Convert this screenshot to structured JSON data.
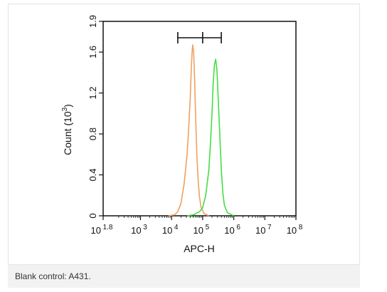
{
  "caption": "Blank control: A431.",
  "chart_data": {
    "type": "line",
    "title": "",
    "xlabel": "APC-H",
    "ylabel": "Count (10^3)",
    "ylabel_base": "Count (10",
    "ylabel_exp": "3",
    "ylabel_close": ")",
    "x_scale": "log10",
    "xlim": [
      1.8,
      8
    ],
    "ylim": [
      0,
      1.9
    ],
    "x_ticks": [
      {
        "value": 1.8,
        "base": "10",
        "exp": "1.8"
      },
      {
        "value": 3,
        "base": "10",
        "exp": "3"
      },
      {
        "value": 4,
        "base": "10",
        "exp": "4"
      },
      {
        "value": 5,
        "base": "10",
        "exp": "5"
      },
      {
        "value": 6,
        "base": "10",
        "exp": "6"
      },
      {
        "value": 7,
        "base": "10",
        "exp": "7"
      },
      {
        "value": 8,
        "base": "10",
        "exp": "8"
      }
    ],
    "y_ticks": [
      {
        "value": 0,
        "label": "0"
      },
      {
        "value": 0.4,
        "label": "0.4"
      },
      {
        "value": 0.8,
        "label": "0.8"
      },
      {
        "value": 1.2,
        "label": "1.2"
      },
      {
        "value": 1.6,
        "label": "1.6"
      },
      {
        "value": 1.9,
        "label": "1.9"
      }
    ],
    "gate_marker": {
      "x_start": 4.2,
      "x_mid": 5.0,
      "x_end": 5.6,
      "y": 1.74
    },
    "series": [
      {
        "color": "#f0a060",
        "points": [
          [
            3.9,
            0
          ],
          [
            4.1,
            0.01
          ],
          [
            4.2,
            0.04
          ],
          [
            4.3,
            0.12
          ],
          [
            4.4,
            0.3
          ],
          [
            4.5,
            0.6
          ],
          [
            4.55,
            0.85
          ],
          [
            4.6,
            1.15
          ],
          [
            4.63,
            1.4
          ],
          [
            4.66,
            1.6
          ],
          [
            4.68,
            1.67
          ],
          [
            4.71,
            1.6
          ],
          [
            4.74,
            1.35
          ],
          [
            4.78,
            0.9
          ],
          [
            4.82,
            0.55
          ],
          [
            4.86,
            0.32
          ],
          [
            4.9,
            0.18
          ],
          [
            4.95,
            0.08
          ],
          [
            5.05,
            0.02
          ],
          [
            5.2,
            0
          ]
        ]
      },
      {
        "color": "#44dd44",
        "points": [
          [
            4.5,
            0
          ],
          [
            4.7,
            0.01
          ],
          [
            4.9,
            0.04
          ],
          [
            5.0,
            0.08
          ],
          [
            5.1,
            0.2
          ],
          [
            5.2,
            0.45
          ],
          [
            5.25,
            0.7
          ],
          [
            5.3,
            1.0
          ],
          [
            5.34,
            1.3
          ],
          [
            5.38,
            1.48
          ],
          [
            5.42,
            1.53
          ],
          [
            5.46,
            1.42
          ],
          [
            5.5,
            1.15
          ],
          [
            5.55,
            0.8
          ],
          [
            5.6,
            0.45
          ],
          [
            5.65,
            0.22
          ],
          [
            5.7,
            0.1
          ],
          [
            5.8,
            0.03
          ],
          [
            6.0,
            0
          ]
        ]
      }
    ]
  }
}
